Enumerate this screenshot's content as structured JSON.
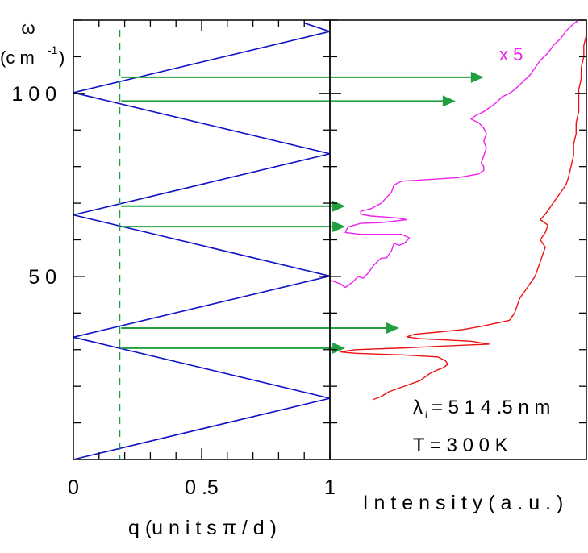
{
  "chart_data": [
    {
      "type": "line",
      "panel": "dispersion",
      "ylabel_symbol": "ω",
      "ylabel_unit_open": "(c m",
      "ylabel_unit_exp": "-1",
      "ylabel_unit_close": ")",
      "xlabel": "q  (u n i t s  π / d )",
      "xlim": [
        0,
        1
      ],
      "ylim": [
        0,
        120
      ],
      "x_ticks": [
        0,
        0.5,
        1
      ],
      "x_tick_labels": [
        "0",
        "0 .5",
        "1"
      ],
      "y_tick_labels": [
        {
          "value": 50,
          "label": "5 0"
        },
        {
          "value": 100,
          "label": "1 0 0"
        }
      ],
      "series_color": "#1010c8",
      "folded_branches": [
        {
          "x": [
            0,
            1
          ],
          "y": [
            0,
            16.7
          ]
        },
        {
          "x": [
            0,
            1
          ],
          "y": [
            33.4,
            16.7
          ]
        },
        {
          "x": [
            0,
            1
          ],
          "y": [
            33.4,
            50.1
          ]
        },
        {
          "x": [
            0,
            1
          ],
          "y": [
            66.8,
            50.1
          ]
        },
        {
          "x": [
            0,
            1
          ],
          "y": [
            66.8,
            83.5
          ]
        },
        {
          "x": [
            0,
            1
          ],
          "y": [
            100.2,
            83.5
          ]
        },
        {
          "x": [
            0,
            1
          ],
          "y": [
            100.2,
            116.9
          ]
        },
        {
          "x": [
            0.9,
            1
          ],
          "y": [
            119.2,
            116.9
          ]
        }
      ],
      "dashed_line": {
        "x": 0.18,
        "color": "#20a040"
      }
    },
    {
      "type": "line",
      "panel": "raman",
      "xlabel": "I n t e n s i t y  ( a . u . )",
      "ylim": [
        0,
        120
      ],
      "annotations": {
        "scale_factor": "x  5",
        "lambda_symbol": "λ",
        "lambda_sub": "i",
        "lambda_value": "= 5 1 4 .5  n m",
        "temperature": "T  =  3 0 0  K"
      },
      "series": [
        {
          "color": "#ee22ee",
          "points": [
            [
              0.0,
              49
            ],
            [
              0.04,
              48
            ],
            [
              0.06,
              47
            ],
            [
              0.09,
              48.5
            ],
            [
              0.11,
              50
            ],
            [
              0.13,
              49.5
            ],
            [
              0.15,
              51
            ],
            [
              0.17,
              53
            ],
            [
              0.2,
              55
            ],
            [
              0.22,
              55
            ],
            [
              0.24,
              57
            ],
            [
              0.25,
              59
            ],
            [
              0.27,
              58.5
            ],
            [
              0.29,
              59
            ],
            [
              0.31,
              60.5
            ],
            [
              0.28,
              61.5
            ],
            [
              0.2,
              61.5
            ],
            [
              0.12,
              61.5
            ],
            [
              0.06,
              62
            ],
            [
              0.07,
              63.5
            ],
            [
              0.12,
              64.5
            ],
            [
              0.2,
              64.7
            ],
            [
              0.3,
              65.5
            ],
            [
              0.26,
              66
            ],
            [
              0.16,
              66.5
            ],
            [
              0.12,
              67
            ],
            [
              0.12,
              67.8
            ],
            [
              0.16,
              68.5
            ],
            [
              0.2,
              70
            ],
            [
              0.22,
              71.5
            ],
            [
              0.24,
              73
            ],
            [
              0.25,
              75
            ],
            [
              0.28,
              76
            ],
            [
              0.5,
              77
            ],
            [
              0.58,
              78
            ],
            [
              0.6,
              79
            ],
            [
              0.6,
              80
            ],
            [
              0.59,
              81
            ],
            [
              0.6,
              83
            ],
            [
              0.61,
              85
            ],
            [
              0.6,
              87
            ],
            [
              0.61,
              89
            ],
            [
              0.6,
              90.5
            ],
            [
              0.58,
              92
            ],
            [
              0.55,
              93
            ],
            [
              0.57,
              94
            ],
            [
              0.6,
              95
            ],
            [
              0.62,
              96
            ],
            [
              0.65,
              97.5
            ],
            [
              0.67,
              99
            ],
            [
              0.7,
              100
            ],
            [
              0.72,
              101
            ],
            [
              0.75,
              103
            ],
            [
              0.78,
              105
            ],
            [
              0.8,
              107
            ],
            [
              0.82,
              109
            ],
            [
              0.85,
              111
            ],
            [
              0.87,
              113
            ],
            [
              0.9,
              115
            ],
            [
              0.92,
              117
            ],
            [
              0.95,
              119
            ],
            [
              0.97,
              120
            ]
          ]
        },
        {
          "color": "#ee1111",
          "points": [
            [
              0.17,
              16.4
            ],
            [
              0.2,
              17.2
            ],
            [
              0.23,
              18.5
            ],
            [
              0.27,
              19.5
            ],
            [
              0.31,
              20.5
            ],
            [
              0.35,
              21.5
            ],
            [
              0.39,
              23.5
            ],
            [
              0.42,
              24.5
            ],
            [
              0.44,
              25
            ],
            [
              0.46,
              26
            ],
            [
              0.45,
              27
            ],
            [
              0.42,
              28
            ],
            [
              0.3,
              28.5
            ],
            [
              0.1,
              29
            ],
            [
              0.04,
              29.4
            ],
            [
              0.1,
              30
            ],
            [
              0.3,
              30.5
            ],
            [
              0.45,
              31
            ],
            [
              0.62,
              31.5
            ],
            [
              0.55,
              32.3
            ],
            [
              0.35,
              33
            ],
            [
              0.3,
              33.5
            ],
            [
              0.33,
              34.2
            ],
            [
              0.42,
              34.8
            ],
            [
              0.52,
              35.5
            ],
            [
              0.6,
              36.5
            ],
            [
              0.7,
              38
            ],
            [
              0.72,
              40
            ],
            [
              0.73,
              42
            ],
            [
              0.74,
              44
            ],
            [
              0.76,
              46
            ],
            [
              0.78,
              48
            ],
            [
              0.8,
              50
            ],
            [
              0.81,
              52
            ],
            [
              0.82,
              54
            ],
            [
              0.83,
              56
            ],
            [
              0.84,
              58
            ],
            [
              0.82,
              60
            ],
            [
              0.84,
              62
            ],
            [
              0.85,
              64
            ],
            [
              0.82,
              65.5
            ],
            [
              0.84,
              67
            ],
            [
              0.86,
              69
            ],
            [
              0.88,
              71
            ],
            [
              0.9,
              73
            ],
            [
              0.92,
              75
            ],
            [
              0.93,
              77
            ],
            [
              0.94,
              80
            ],
            [
              0.95,
              83
            ],
            [
              0.95,
              86
            ],
            [
              0.96,
              89
            ],
            [
              0.96,
              92
            ],
            [
              0.97,
              95
            ],
            [
              0.97,
              98
            ],
            [
              0.97,
              101
            ],
            [
              0.98,
              104
            ],
            [
              0.98,
              107
            ],
            [
              0.99,
              110
            ],
            [
              0.99,
              113
            ],
            [
              1.0,
              116
            ],
            [
              1.0,
              120
            ]
          ]
        }
      ]
    }
  ],
  "arrows": {
    "color": "#20a040",
    "omega": [
      104.4,
      97.9,
      69.2,
      63.6,
      35.9,
      30.4
    ],
    "head_fraction": [
      0.6,
      0.49,
      0.06,
      0.06,
      0.27,
      0.06
    ]
  }
}
